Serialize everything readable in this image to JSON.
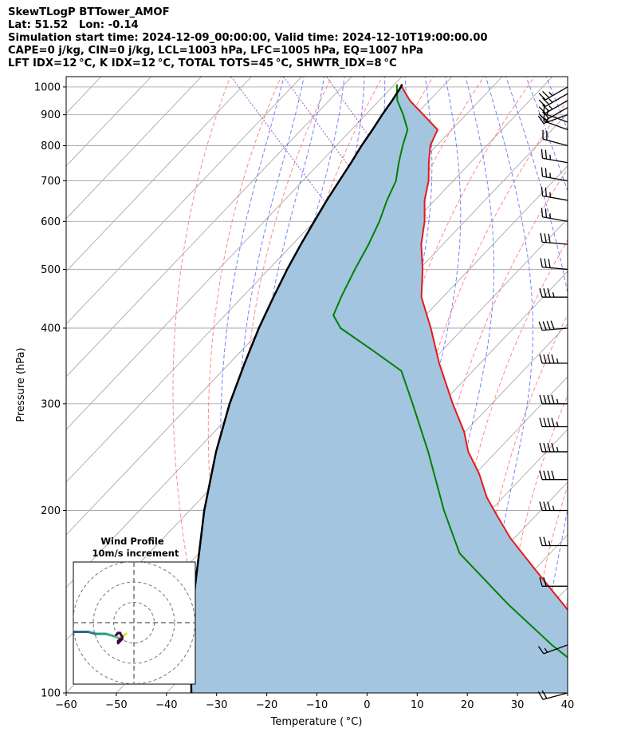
{
  "header": {
    "lines": [
      "SkewTLogP BTTower_AMOF",
      "Lat: 51.52   Lon: -0.14",
      "Simulation start time: 2024-12-09_00:00:00, Valid time: 2024-12-10T19:00:00.00",
      "CAPE=0 j/kg, CIN=0 j/kg, LCL=1003 hPa, LFC=1005 hPa, EQ=1007 hPa",
      "LFT IDX=12 °C, K IDX=12 °C, TOTAL TOTS=45 °C, SHWTR_IDX=8 °C"
    ]
  },
  "chart_data": {
    "type": "skewt",
    "xlabel": "Temperature ( °C)",
    "ylabel": "Pressure (hPa)",
    "xlim": [
      -60,
      40
    ],
    "ylim": [
      1040,
      100
    ],
    "x_ticks": [
      -60,
      -50,
      -40,
      -30,
      -20,
      -10,
      0,
      10,
      20,
      30,
      40
    ],
    "x_tick_labels": [
      "−60",
      "−50",
      "−40",
      "−30",
      "−20",
      "−10",
      "0",
      "10",
      "20",
      "30",
      "40"
    ],
    "y_ticks": [
      1000,
      900,
      800,
      700,
      600,
      500,
      400,
      300,
      200,
      100
    ],
    "y_tick_labels": [
      "1000",
      "900",
      "800",
      "700",
      "600",
      "500",
      "400",
      "300",
      "200",
      "100"
    ],
    "skew_deg_per_decade": 115,
    "colors": {
      "temperature": "#e31a1c",
      "dewpoint": "#008000",
      "parcel": "#000000",
      "fill": "#a3c5e0",
      "dry_adiabat": "#ff6b6b",
      "moist_adiabat": "#5a6cff",
      "mixing_ratio": "#9b59b6",
      "isotherm": "#aaaaaa"
    },
    "series": [
      {
        "name": "Temperature",
        "pressure": [
          1010,
          1000,
          950,
          900,
          850,
          800,
          750,
          700,
          650,
          600,
          550,
          500,
          450,
          400,
          350,
          300,
          270,
          250,
          230,
          210,
          195,
          180,
          160,
          140,
          125,
          110,
          100
        ],
        "temp": [
          5.5,
          5,
          4,
          4,
          4,
          -0.5,
          -4,
          -7.5,
          -12,
          -16,
          -21,
          -25.5,
          -31,
          -35,
          -40,
          -45,
          -48,
          -51,
          -53,
          -56,
          -57.5,
          -59,
          -60,
          -61,
          -62,
          -63,
          -63
        ]
      },
      {
        "name": "Dewpoint",
        "pressure": [
          1010,
          1000,
          950,
          900,
          850,
          800,
          750,
          700,
          650,
          600,
          550,
          500,
          450,
          420,
          400,
          370,
          340,
          300,
          250,
          200,
          170,
          140,
          120,
          100
        ],
        "temp": [
          4.5,
          4,
          1.5,
          0,
          -2,
          -6,
          -10,
          -14,
          -19.5,
          -25,
          -31.5,
          -39,
          -47,
          -52,
          -53,
          -51,
          -49,
          -53,
          -59,
          -67,
          -72,
          -72,
          -71,
          -68
        ]
      },
      {
        "name": "Parcel",
        "pressure": [
          1010,
          1000,
          950,
          900,
          850,
          800,
          750,
          700,
          650,
          600,
          550,
          500,
          450,
          400,
          350,
          300,
          250,
          200,
          150,
          120,
          100
        ],
        "temp": [
          5.5,
          4.8,
          0.5,
          -4.2,
          -9,
          -14.2,
          -19.5,
          -25.3,
          -31.5,
          -38,
          -45,
          -52.5,
          -60.5,
          -69.3,
          -78.8,
          -89.5,
          -101.3,
          -114.8,
          -131,
          -143,
          -152
        ]
      }
    ],
    "wind_barbs": {
      "pressure": [
        100,
        120,
        150,
        175,
        200,
        225,
        250,
        275,
        300,
        350,
        400,
        450,
        500,
        550,
        600,
        650,
        700,
        750,
        800,
        850,
        875,
        900,
        925,
        950,
        975,
        1000
      ],
      "speed_kt": [
        20,
        15,
        20,
        25,
        35,
        40,
        45,
        45,
        45,
        45,
        40,
        35,
        30,
        30,
        25,
        25,
        25,
        25,
        20,
        15,
        15,
        15,
        20,
        25,
        25,
        25
      ],
      "dir_deg": [
        255,
        250,
        270,
        270,
        270,
        270,
        270,
        270,
        270,
        270,
        265,
        270,
        275,
        275,
        280,
        280,
        280,
        280,
        285,
        290,
        290,
        250,
        240,
        240,
        240,
        240
      ]
    },
    "inset": {
      "title": "Wind Profile",
      "subtitle": "10m/s increment",
      "rings_ms": [
        10,
        20,
        30
      ],
      "hodograph_u": [
        0,
        -1,
        -2,
        -3,
        -5,
        -8,
        -12,
        -15,
        -20,
        -25,
        -30,
        -35
      ],
      "hodograph_v": [
        0,
        -1,
        -2,
        -2,
        -1,
        0,
        0,
        1,
        1,
        1,
        1,
        1
      ],
      "hodograph_loop_u": [
        -8,
        -7,
        -6,
        -5,
        -5,
        -6,
        -7,
        -7,
        -6
      ],
      "hodograph_loop_v": [
        1,
        2,
        2,
        0,
        -1,
        -2,
        -3,
        -2,
        -1
      ]
    }
  }
}
